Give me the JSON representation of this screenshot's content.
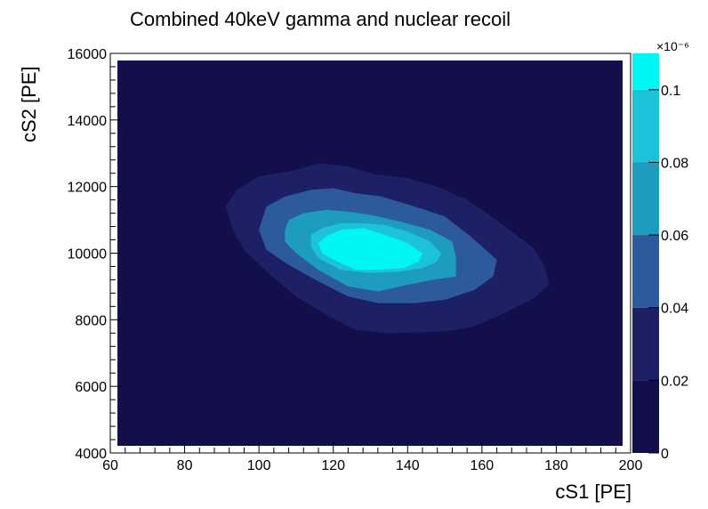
{
  "chart_data": {
    "type": "heatmap",
    "title": "Combined 40keV gamma and nuclear recoil",
    "xlabel": "cS1 [PE]",
    "ylabel": "cS2 [PE]",
    "xlim": [
      60,
      200
    ],
    "ylim": [
      4000,
      16000
    ],
    "x_ticks": [
      60,
      80,
      100,
      120,
      140,
      160,
      180,
      200
    ],
    "y_ticks": [
      4000,
      6000,
      8000,
      10000,
      12000,
      14000,
      16000
    ],
    "colorbar": {
      "exponent_label": "×10⁻⁶",
      "levels": [
        0,
        0.02,
        0.04,
        0.06,
        0.08,
        0.1
      ],
      "tick_labels": [
        "0",
        "0.02",
        "0.04",
        "0.06",
        "0.08",
        "0.1"
      ],
      "max": 0.11,
      "colors": [
        "#120f4a",
        "#1e2066",
        "#2c5a9c",
        "#1e9cc0",
        "#1cc2da",
        "#00f5f5"
      ]
    },
    "contours": [
      {
        "level": 0.02,
        "color": "#1e2066",
        "points": [
          [
            91,
            11400
          ],
          [
            94,
            11900
          ],
          [
            100,
            12300
          ],
          [
            110,
            12500
          ],
          [
            116,
            12700
          ],
          [
            124,
            12600
          ],
          [
            132,
            12350
          ],
          [
            140,
            12250
          ],
          [
            148,
            12000
          ],
          [
            156,
            11600
          ],
          [
            162,
            11150
          ],
          [
            168,
            10650
          ],
          [
            174,
            10150
          ],
          [
            177,
            9550
          ],
          [
            178,
            9050
          ],
          [
            174,
            8650
          ],
          [
            166,
            8200
          ],
          [
            158,
            7800
          ],
          [
            150,
            7650
          ],
          [
            142,
            7620
          ],
          [
            134,
            7600
          ],
          [
            126,
            7700
          ],
          [
            118,
            8150
          ],
          [
            110,
            8700
          ],
          [
            102,
            9450
          ],
          [
            96,
            10100
          ],
          [
            93,
            10700
          ]
        ]
      },
      {
        "level": 0.04,
        "color": "#2c5a9c",
        "points": [
          [
            100,
            10700
          ],
          [
            102,
            11400
          ],
          [
            107,
            11700
          ],
          [
            114,
            11900
          ],
          [
            120,
            11950
          ],
          [
            126,
            11800
          ],
          [
            133,
            11700
          ],
          [
            142,
            11400
          ],
          [
            150,
            11100
          ],
          [
            157,
            10500
          ],
          [
            164,
            9800
          ],
          [
            163,
            9300
          ],
          [
            158,
            8900
          ],
          [
            150,
            8600
          ],
          [
            142,
            8500
          ],
          [
            132,
            8500
          ],
          [
            124,
            8700
          ],
          [
            116,
            9150
          ],
          [
            108,
            9650
          ],
          [
            102,
            10100
          ]
        ]
      },
      {
        "level": 0.06,
        "color": "#1e9cc0",
        "points": [
          [
            107,
            10700
          ],
          [
            108,
            11000
          ],
          [
            112,
            11200
          ],
          [
            118,
            11300
          ],
          [
            124,
            11250
          ],
          [
            130,
            11150
          ],
          [
            138,
            10950
          ],
          [
            146,
            10700
          ],
          [
            152,
            10350
          ],
          [
            153,
            9900
          ],
          [
            153,
            9300
          ],
          [
            147,
            9200
          ],
          [
            140,
            9050
          ],
          [
            132,
            8850
          ],
          [
            124,
            9000
          ],
          [
            116,
            9500
          ],
          [
            110,
            10000
          ],
          [
            107,
            10350
          ]
        ]
      },
      {
        "level": 0.08,
        "color": "#1cc2da",
        "points": [
          [
            114,
            10550
          ],
          [
            117,
            10750
          ],
          [
            122,
            10900
          ],
          [
            128,
            10900
          ],
          [
            134,
            10850
          ],
          [
            140,
            10650
          ],
          [
            146,
            10350
          ],
          [
            149,
            10000
          ],
          [
            148,
            9750
          ],
          [
            144,
            9550
          ],
          [
            138,
            9450
          ],
          [
            130,
            9400
          ],
          [
            122,
            9500
          ],
          [
            116,
            9850
          ],
          [
            114,
            10200
          ]
        ]
      },
      {
        "level": 0.1,
        "color": "#00f5f5",
        "points": [
          [
            116,
            10300
          ],
          [
            118,
            10500
          ],
          [
            122,
            10700
          ],
          [
            128,
            10750
          ],
          [
            134,
            10550
          ],
          [
            140,
            10300
          ],
          [
            144,
            10000
          ],
          [
            143,
            9750
          ],
          [
            139,
            9550
          ],
          [
            132,
            9500
          ],
          [
            126,
            9500
          ],
          [
            121,
            9750
          ],
          [
            117,
            10000
          ]
        ]
      }
    ]
  }
}
